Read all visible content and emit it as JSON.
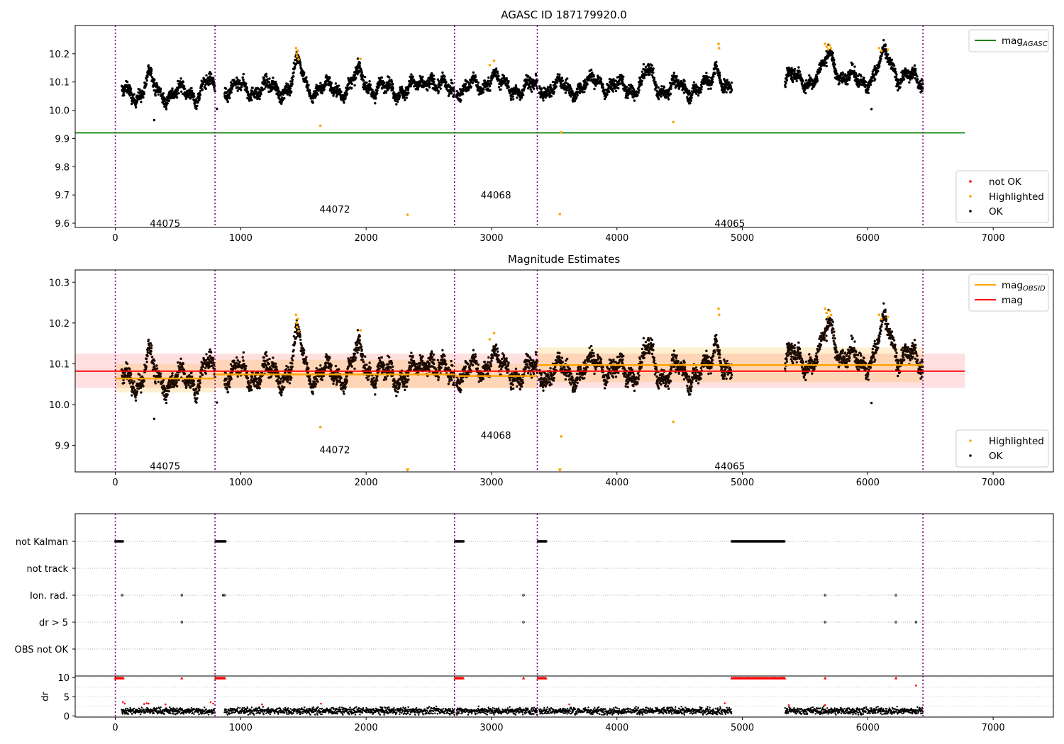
{
  "chart_data": [
    {
      "type": "scatter",
      "title": "AGASC ID 187179920.0",
      "xlim": [
        -320,
        7480
      ],
      "ylim": [
        9.585,
        10.3
      ],
      "x_ticks": [
        0,
        1000,
        2000,
        3000,
        4000,
        5000,
        6000,
        7000
      ],
      "y_ticks": [
        9.6,
        9.7,
        9.8,
        9.9,
        10.0,
        10.1,
        10.2
      ],
      "obs_boundaries": [
        0,
        795,
        2705,
        3365,
        6440
      ],
      "obsids": [
        {
          "label": "44075",
          "x": 397,
          "y": 9.6
        },
        {
          "label": "44072",
          "x": 1750,
          "y": 9.65
        },
        {
          "label": "44068",
          "x": 3035,
          "y": 9.7
        },
        {
          "label": "44065",
          "x": 4900,
          "y": 9.6
        }
      ],
      "agasc_mag": {
        "value": 9.92,
        "x_range": [
          -320,
          6775
        ]
      },
      "segments": [
        {
          "x_start": 50,
          "x_end": 795,
          "center": 10.06,
          "mean": 10.066,
          "std": 0.012
        },
        {
          "x_start": 870,
          "x_end": 2705,
          "center": 10.075,
          "mean": 10.074,
          "std": 0.012
        },
        {
          "x_start": 2720,
          "x_end": 3365,
          "center": 10.08,
          "mean": 10.07,
          "std": 0.012
        },
        {
          "x_start": 3380,
          "x_end": 4915,
          "center": 10.08,
          "mean": 10.098,
          "std": 0.012
        },
        {
          "x_start": 5340,
          "x_end": 6440,
          "center": 10.11,
          "mean": 10.098,
          "std": 0.012
        }
      ],
      "bumps": [
        {
          "x": 270,
          "amp": 0.055,
          "w": 40
        },
        {
          "x": 730,
          "amp": 0.035,
          "w": 50
        },
        {
          "x": 1460,
          "amp": 0.085,
          "w": 50
        },
        {
          "x": 1950,
          "amp": 0.05,
          "w": 60
        },
        {
          "x": 2500,
          "amp": 0.05,
          "w": 50
        },
        {
          "x": 3000,
          "amp": 0.05,
          "w": 50
        },
        {
          "x": 3850,
          "amp": 0.03,
          "w": 60
        },
        {
          "x": 4250,
          "amp": 0.05,
          "w": 50
        },
        {
          "x": 4800,
          "amp": 0.08,
          "w": 40
        },
        {
          "x": 5700,
          "amp": 0.09,
          "w": 60
        },
        {
          "x": 6150,
          "amp": 0.085,
          "w": 70
        }
      ],
      "highlighted": [
        {
          "x": 1440,
          "y": 10.22
        },
        {
          "x": 1445,
          "y": 10.2
        },
        {
          "x": 1450,
          "y": 10.19
        },
        {
          "x": 1455,
          "y": 10.21
        },
        {
          "x": 1462,
          "y": 10.18
        },
        {
          "x": 1635,
          "y": 9.945
        },
        {
          "x": 1955,
          "y": 10.182
        },
        {
          "x": 2330,
          "y": 9.63
        },
        {
          "x": 2985,
          "y": 10.16
        },
        {
          "x": 3020,
          "y": 10.175
        },
        {
          "x": 3545,
          "y": 9.632
        },
        {
          "x": 3555,
          "y": 9.922
        },
        {
          "x": 4450,
          "y": 9.958
        },
        {
          "x": 4810,
          "y": 10.235
        },
        {
          "x": 4815,
          "y": 10.22
        },
        {
          "x": 5660,
          "y": 10.235
        },
        {
          "x": 5672,
          "y": 10.225
        },
        {
          "x": 5684,
          "y": 10.215
        },
        {
          "x": 5696,
          "y": 10.23
        },
        {
          "x": 5708,
          "y": 10.22
        },
        {
          "x": 6090,
          "y": 10.22
        },
        {
          "x": 6110,
          "y": 10.21
        },
        {
          "x": 6160,
          "y": 10.215
        }
      ],
      "outliers_ok": [
        {
          "x": 310,
          "y": 9.965
        },
        {
          "x": 6030,
          "y": 10.004
        },
        {
          "x": 810,
          "y": 10.005
        }
      ],
      "legends": [
        {
          "entries": [
            {
              "label": "mag",
              "sub": "AGASC",
              "marker": "line",
              "color": "#008000"
            }
          ]
        },
        {
          "entries": [
            {
              "label": "not OK",
              "marker": "dot",
              "color": "#ff0000"
            },
            {
              "label": "Highlighted",
              "marker": "dot",
              "color": "#ffa500"
            },
            {
              "label": "OK",
              "marker": "dot",
              "color": "#000000"
            }
          ]
        }
      ]
    },
    {
      "type": "scatter",
      "title": "Magnitude Estimates",
      "xlim": [
        -320,
        7480
      ],
      "ylim": [
        9.835,
        10.33
      ],
      "x_ticks": [
        0,
        1000,
        2000,
        3000,
        4000,
        5000,
        6000,
        7000
      ],
      "y_ticks": [
        9.9,
        10.0,
        10.1,
        10.2,
        10.3
      ],
      "obsids": [
        {
          "label": "44075",
          "x": 397,
          "y": 9.85
        },
        {
          "label": "44072",
          "x": 1750,
          "y": 9.89
        },
        {
          "label": "44068",
          "x": 3035,
          "y": 9.925
        },
        {
          "label": "44065",
          "x": 4900,
          "y": 9.85
        }
      ],
      "mag": {
        "value": 10.082,
        "band": [
          10.041,
          10.125
        ],
        "x_range": [
          -320,
          6775
        ]
      },
      "obsid_mags": [
        {
          "x_range": [
            0,
            795
          ],
          "value": 10.064,
          "band": [
            10.03,
            10.1
          ]
        },
        {
          "x_range": [
            795,
            2705
          ],
          "value": 10.074,
          "band": [
            10.04,
            10.11
          ]
        },
        {
          "x_range": [
            2705,
            3365
          ],
          "value": 10.07,
          "band": [
            10.04,
            10.1
          ]
        },
        {
          "x_range": [
            3365,
            6440
          ],
          "value": 10.097,
          "band": [
            10.055,
            10.14
          ]
        }
      ],
      "clipped_highlighted": [
        {
          "x": 2330,
          "y": 9.84
        },
        {
          "x": 3545,
          "y": 9.84
        }
      ],
      "legends": [
        {
          "entries": [
            {
              "label": "mag",
              "sub": "OBSID",
              "marker": "line",
              "color": "#ffa500"
            },
            {
              "label": "mag",
              "marker": "line",
              "color": "#ff0000"
            }
          ]
        },
        {
          "entries": [
            {
              "label": "Highlighted",
              "marker": "dot",
              "color": "#ffa500"
            },
            {
              "label": "OK",
              "marker": "dot",
              "color": "#000000"
            }
          ]
        }
      ]
    },
    {
      "type": "scatter",
      "categories": [
        "not Kalman",
        "not track",
        "Ion. rad.",
        "dr > 5",
        "OBS not OK"
      ],
      "xlim": [
        -320,
        7480
      ],
      "flags": [
        {
          "category": "not Kalman",
          "ranges": [
            [
              0,
              65
            ],
            [
              800,
              880
            ],
            [
              2710,
              2780
            ],
            [
              3370,
              3440
            ],
            [
              4915,
              5340
            ]
          ]
        },
        {
          "category": "not track",
          "ranges": []
        },
        {
          "category": "Ion. rad.",
          "points": [
            55,
            530,
            860,
            870,
            3255,
            5660,
            6225
          ]
        },
        {
          "category": "dr > 5",
          "points": [
            530,
            3255,
            5660,
            6225,
            6385
          ]
        },
        {
          "category": "OBS not OK",
          "points": []
        }
      ]
    },
    {
      "type": "scatter",
      "ylabel": "dr",
      "xlim": [
        -320,
        7480
      ],
      "ylim": [
        -0.3,
        10.4
      ],
      "x_ticks": [
        0,
        1000,
        2000,
        3000,
        4000,
        5000,
        6000,
        7000
      ],
      "y_ticks": [
        0,
        5,
        10
      ],
      "clipped_ranges": [
        [
          0,
          65
        ],
        [
          800,
          880
        ],
        [
          2710,
          2780
        ],
        [
          3370,
          3440
        ],
        [
          4915,
          5340
        ]
      ],
      "clipped_points": [
        530,
        3255,
        5660,
        6225
      ],
      "red_points": [
        {
          "x": 60,
          "y": 3.6
        },
        {
          "x": 75,
          "y": 3.2
        },
        {
          "x": 230,
          "y": 3.1
        },
        {
          "x": 250,
          "y": 3.3
        },
        {
          "x": 265,
          "y": 3.2
        },
        {
          "x": 400,
          "y": 3.0
        },
        {
          "x": 760,
          "y": 3.6
        },
        {
          "x": 780,
          "y": 3.2
        },
        {
          "x": 1170,
          "y": 3.0
        },
        {
          "x": 1640,
          "y": 3.2
        },
        {
          "x": 3620,
          "y": 3.0
        },
        {
          "x": 4860,
          "y": 3.3
        },
        {
          "x": 5370,
          "y": 2.8
        },
        {
          "x": 5660,
          "y": 2.8
        },
        {
          "x": 6385,
          "y": 7.9
        }
      ],
      "data_ranges": [
        [
          50,
          795
        ],
        [
          870,
          2705
        ],
        [
          2720,
          3365
        ],
        [
          3380,
          4915
        ],
        [
          5340,
          6440
        ]
      ]
    }
  ]
}
